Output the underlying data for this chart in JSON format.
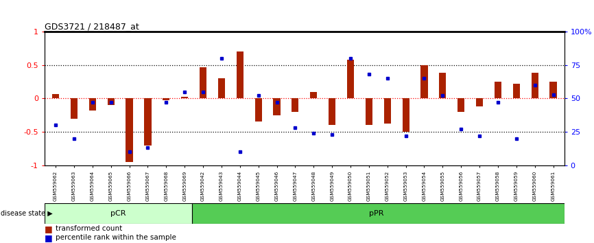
{
  "title": "GDS3721 / 218487_at",
  "samples": [
    "GSM559062",
    "GSM559063",
    "GSM559064",
    "GSM559065",
    "GSM559066",
    "GSM559067",
    "GSM559068",
    "GSM559069",
    "GSM559042",
    "GSM559043",
    "GSM559044",
    "GSM559045",
    "GSM559046",
    "GSM559047",
    "GSM559048",
    "GSM559049",
    "GSM559050",
    "GSM559051",
    "GSM559052",
    "GSM559053",
    "GSM559054",
    "GSM559055",
    "GSM559056",
    "GSM559057",
    "GSM559058",
    "GSM559059",
    "GSM559060",
    "GSM559061"
  ],
  "transformed_count": [
    0.07,
    -0.3,
    -0.18,
    -0.1,
    -0.95,
    -0.7,
    -0.03,
    0.02,
    0.47,
    0.3,
    0.7,
    -0.35,
    -0.25,
    -0.2,
    0.1,
    -0.4,
    0.58,
    -0.4,
    -0.38,
    -0.5,
    0.5,
    0.38,
    -0.2,
    -0.12,
    0.25,
    0.22,
    0.38,
    0.25
  ],
  "percentile_rank": [
    0.3,
    0.2,
    0.47,
    0.47,
    0.1,
    0.13,
    0.47,
    0.55,
    0.55,
    0.8,
    0.1,
    0.52,
    0.47,
    0.28,
    0.24,
    0.23,
    0.8,
    0.68,
    0.65,
    0.22,
    0.65,
    0.52,
    0.27,
    0.22,
    0.47,
    0.2,
    0.6,
    0.53
  ],
  "pCR_count": 8,
  "pPR_count": 20,
  "bar_color": "#aa2200",
  "dot_color": "#0000cc",
  "pCR_color": "#ccffcc",
  "pPR_color": "#55cc55",
  "ylim": [
    -1.0,
    1.0
  ],
  "right_ylim": [
    0,
    100
  ],
  "legend_red": "transformed count",
  "legend_blue": "percentile rank within the sample",
  "disease_state_label": "disease state",
  "pCR_label": "pCR",
  "pPR_label": "pPR"
}
